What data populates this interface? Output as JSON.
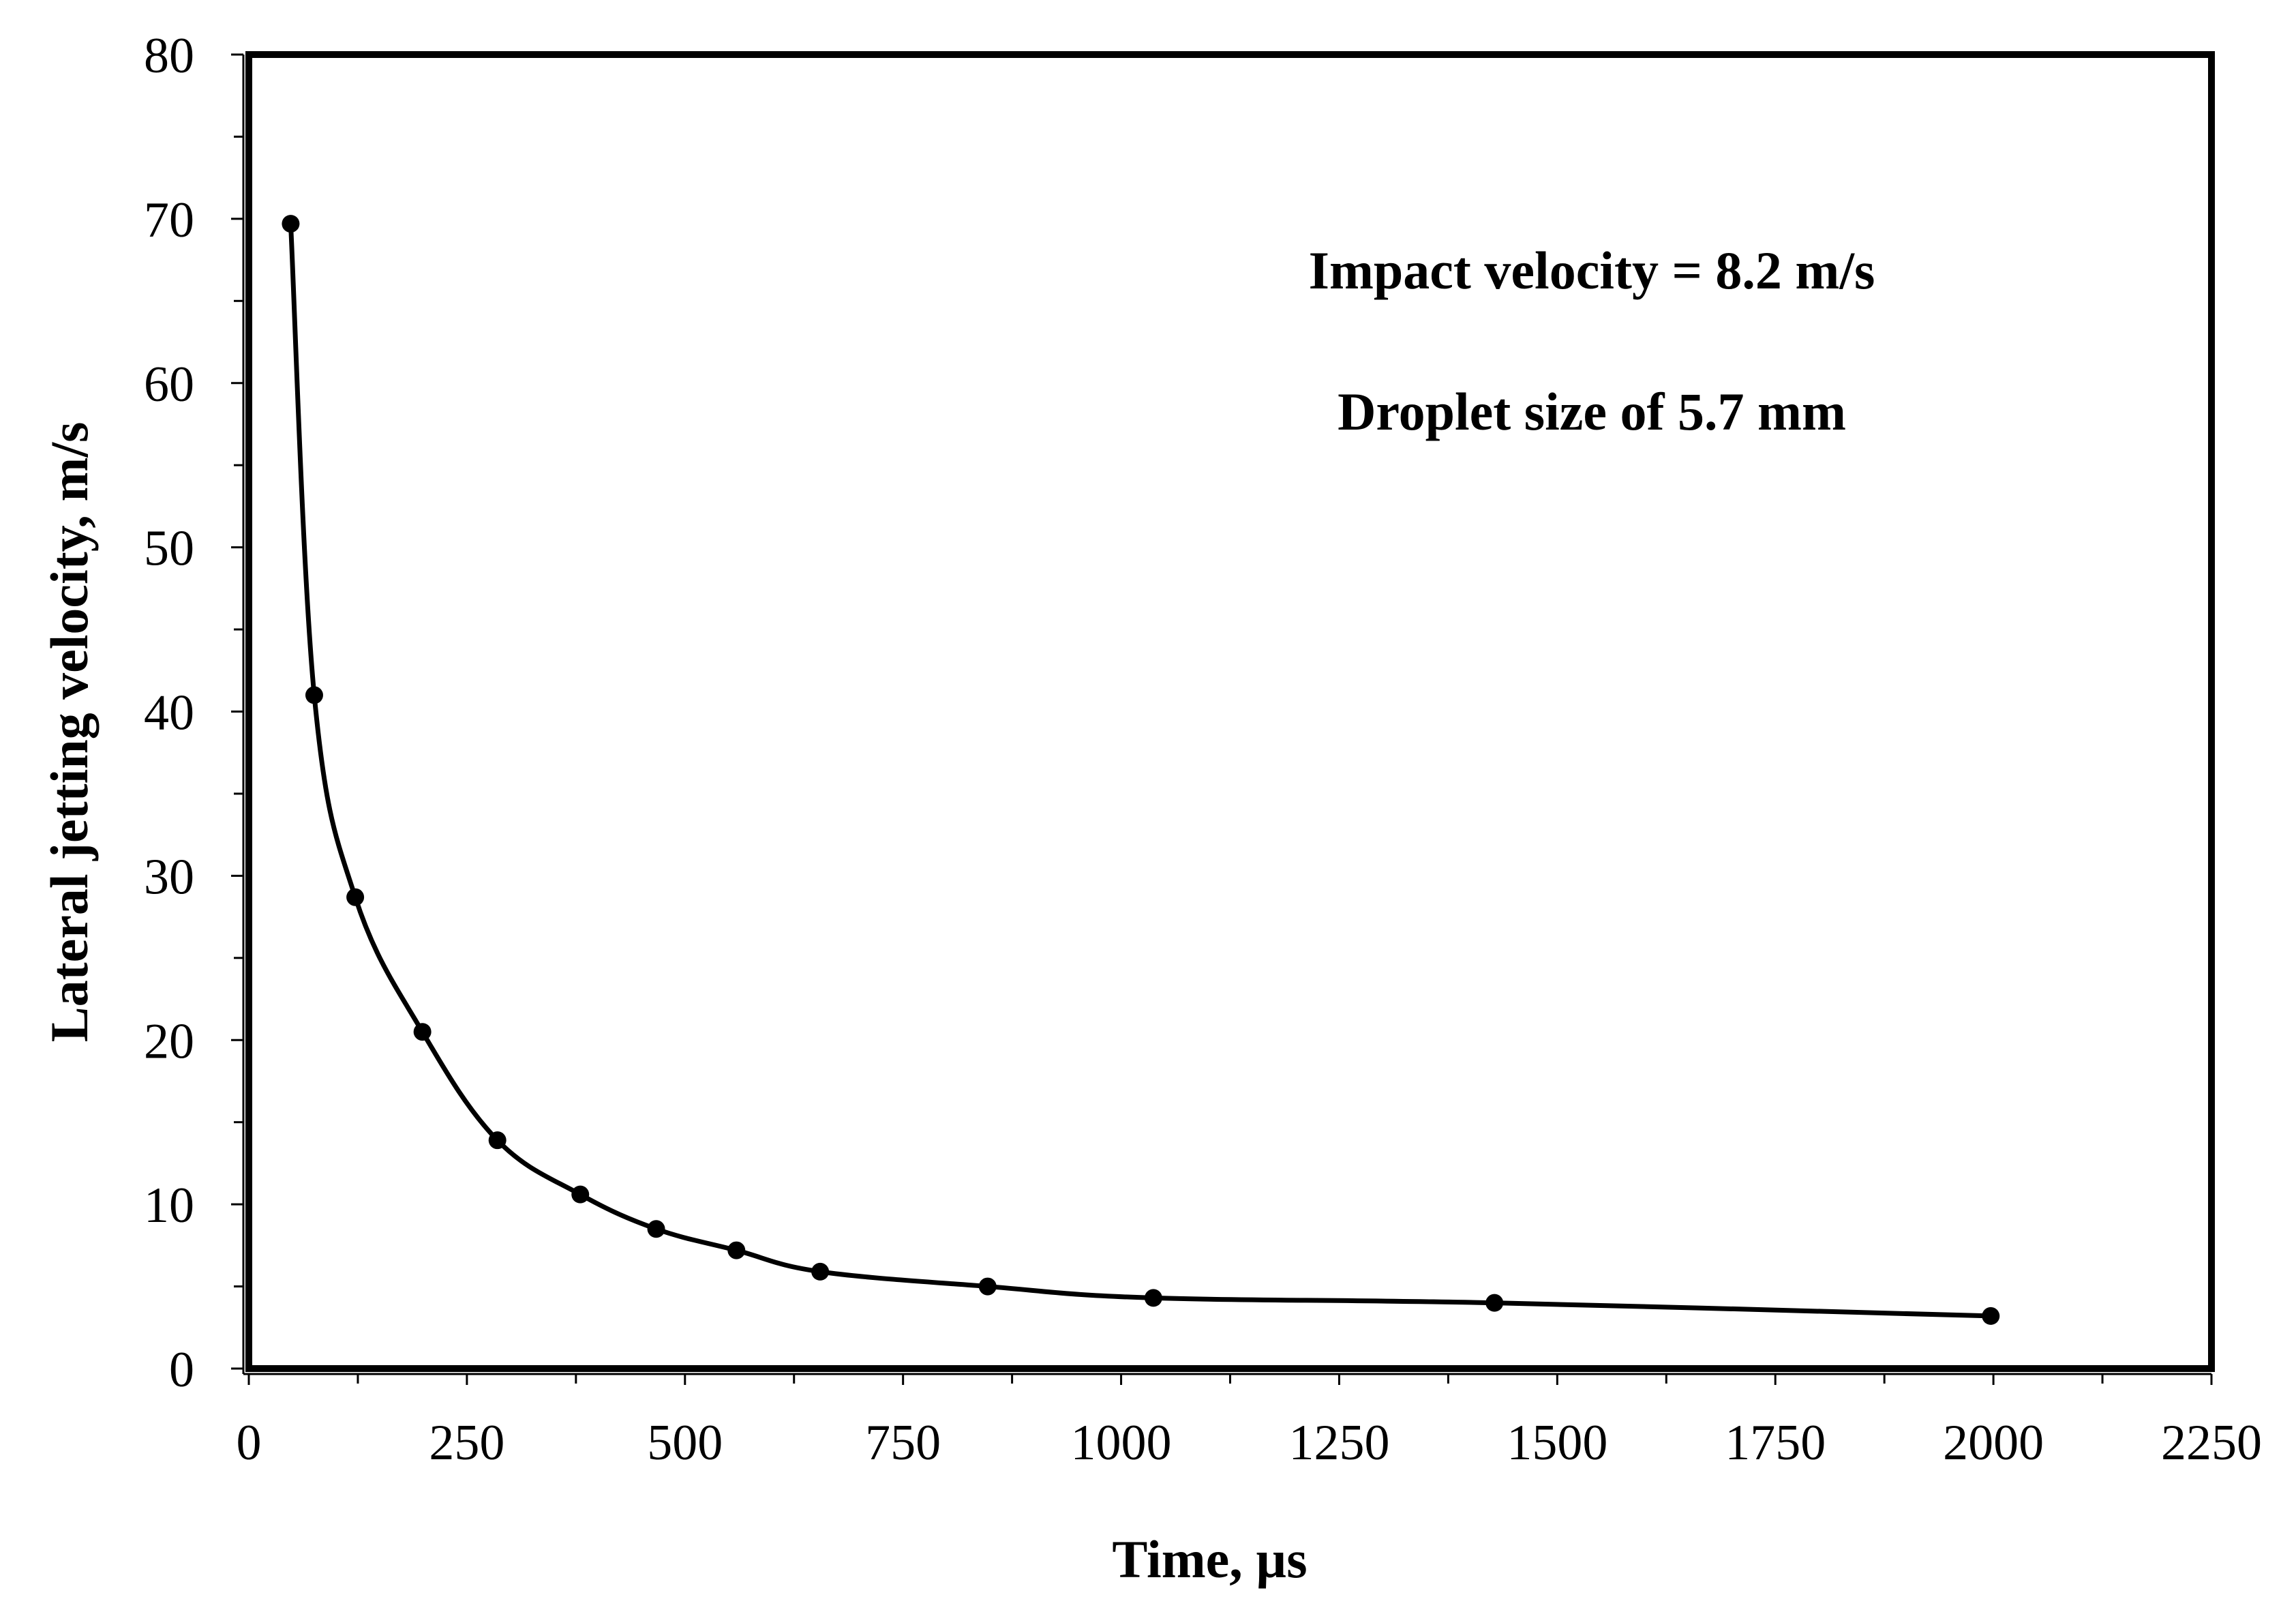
{
  "chart_data": {
    "type": "line",
    "title": "",
    "xlabel": "Time, µs",
    "ylabel": "Lateral jetting velocity, m/s",
    "xlim": [
      0,
      2250
    ],
    "ylim": [
      0,
      80
    ],
    "x_major_ticks": [
      0,
      250,
      500,
      750,
      1000,
      1250,
      1500,
      1750,
      2000,
      2250
    ],
    "x_tick_labels": [
      "0",
      "250",
      "500",
      "750",
      "1000",
      "1250",
      "1500",
      "1750",
      "2000",
      "2250"
    ],
    "y_major_ticks": [
      0,
      10,
      20,
      30,
      40,
      50,
      60,
      70,
      80
    ],
    "y_tick_labels": [
      "0",
      "10",
      "20",
      "30",
      "40",
      "50",
      "60",
      "70",
      "80"
    ],
    "x_minor_step": 125,
    "y_minor_step": 5,
    "grid": false,
    "legend": "none",
    "series": [
      {
        "name": "Lateral jetting velocity",
        "color": "#000000",
        "marker": "circle",
        "smooth": true,
        "x": [
          48,
          75,
          122,
          199,
          285,
          380,
          467,
          559,
          655,
          847,
          1037,
          1428,
          1997
        ],
        "y": [
          69.7,
          41.0,
          28.7,
          20.5,
          13.9,
          10.6,
          8.5,
          7.2,
          5.9,
          5.0,
          4.3,
          4.0,
          3.2
        ]
      }
    ],
    "annotations": [
      "Impact velocity = 8.2 m/s",
      "Droplet size of 5.7 mm"
    ]
  }
}
